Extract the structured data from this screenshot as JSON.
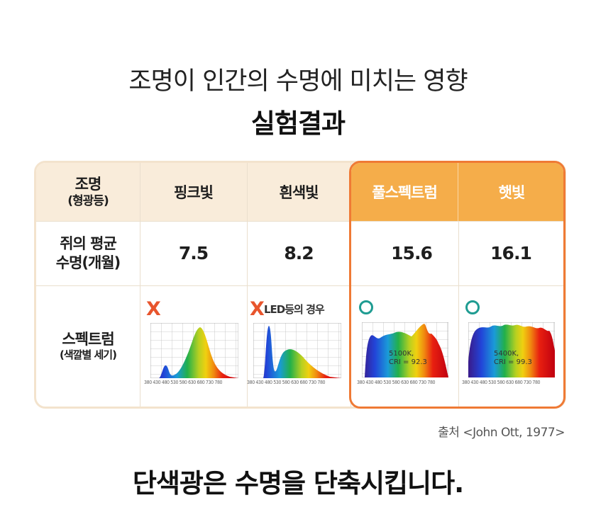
{
  "title_line1": "조명이 인간의 수명에 미치는 영향",
  "title_line2": "실험결과",
  "table": {
    "row_head_lighting": "조명",
    "row_head_lighting_sub": "(형광등)",
    "row_head_lifespan_1": "쥐의 평균",
    "row_head_lifespan_2": "수명(개월)",
    "row_head_spectrum": "스펙트럼",
    "row_head_spectrum_sub": "(색깔별 세기)",
    "columns": [
      "핑크빛",
      "흰색빛",
      "풀스펙트럼",
      "햇빛"
    ],
    "lifespans": [
      "7.5",
      "8.2",
      "15.6",
      "16.1"
    ],
    "marks": [
      "X",
      "X",
      "O",
      "O"
    ],
    "led_note": "LED등의 경우",
    "axis_ticks": "380 430 480 530 580 630 680 730 780",
    "spectrum_notes": [
      {
        "kelvin": "5100K,",
        "cri": "CRI = 92.3"
      },
      {
        "kelvin": "5400K,",
        "cri": "CRI = 99.3"
      }
    ]
  },
  "source": "출처 <John Ott, 1977>",
  "conclusion": "단색광은 수명을 단축시킵니다.",
  "colors": {
    "header_bg": "#f9ecda",
    "highlight_border": "#ef7a35",
    "highlight_header": "#f5ad4a",
    "x_mark": "#e8552d",
    "o_mark": "#1f9c92"
  }
}
